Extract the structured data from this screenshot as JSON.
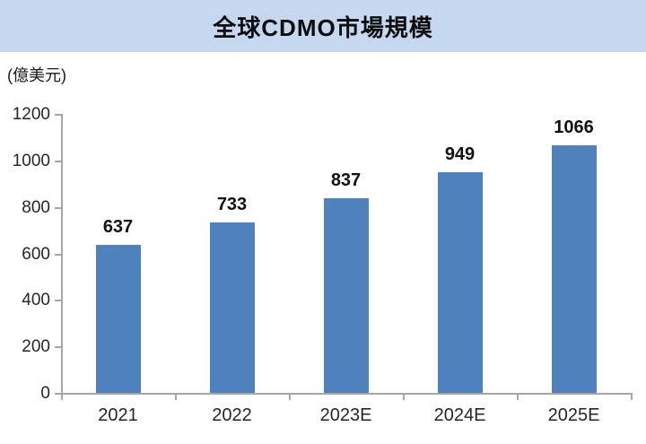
{
  "header": {
    "title": "全球CDMO市場規模"
  },
  "unit_label": "(億美元)",
  "colors": {
    "banner_bg": "#c6d8ef",
    "bar_fill": "#4f81bc",
    "axis": "#a6a6a6",
    "title_text": "#0d0d0d",
    "tick_text": "#262626",
    "value_label_text": "#111111"
  },
  "chart_data": {
    "type": "bar",
    "title": "全球CDMO市場規模",
    "ylabel": "(億美元)",
    "categories": [
      "2021",
      "2022",
      "2023E",
      "2024E",
      "2025E"
    ],
    "values": [
      637,
      733,
      837,
      949,
      1066
    ],
    "value_labels": [
      "637",
      "733",
      "837",
      "949",
      "1066"
    ],
    "yticks": [
      0,
      200,
      400,
      600,
      800,
      1000,
      1200
    ],
    "ylim": [
      0,
      1200
    ],
    "grid": "off",
    "legend": "none",
    "data_labels": "above-bars"
  }
}
